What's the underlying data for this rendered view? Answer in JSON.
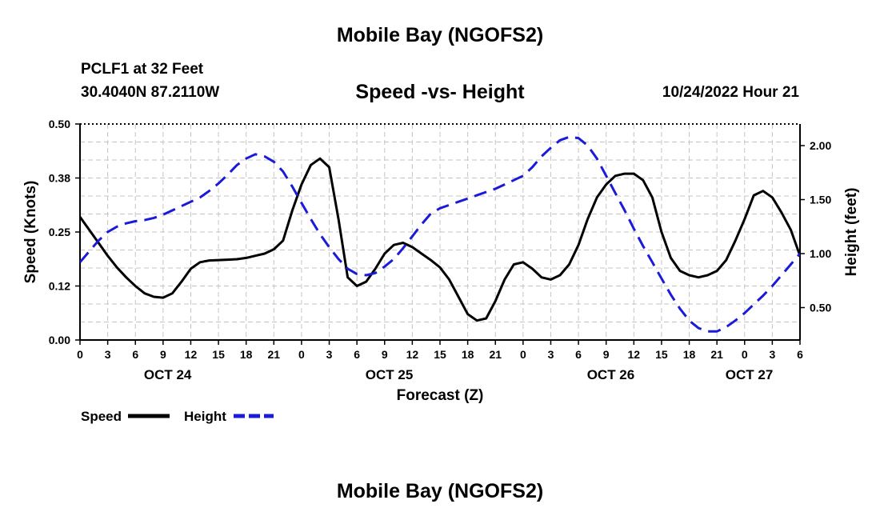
{
  "header": {
    "title": "Mobile Bay (NGOFS2)",
    "station": "PCLF1 at 32 Feet",
    "coords": "30.4040N  87.2110W",
    "timestamp": "10/24/2022 Hour 21"
  },
  "footer": {
    "title": "Mobile Bay (NGOFS2)"
  },
  "chart_data": {
    "type": "line",
    "title": "Speed -vs- Height",
    "xlabel": "Forecast (Z)",
    "ylabel": "Speed (Knots)",
    "y2label": "Height (feet)",
    "xlim": [
      0,
      78
    ],
    "ylim": [
      0,
      0.5
    ],
    "y2lim": [
      0.2,
      2.2
    ],
    "grid": true,
    "x_tick_values": [
      0,
      3,
      6,
      9,
      12,
      15,
      18,
      21,
      24,
      27,
      30,
      33,
      36,
      39,
      42,
      45,
      48,
      51,
      54,
      57,
      60,
      63,
      66,
      69,
      72,
      75,
      78
    ],
    "x_tick_labels": [
      "0",
      "3",
      "6",
      "9",
      "12",
      "15",
      "18",
      "21",
      "0",
      "3",
      "6",
      "9",
      "12",
      "15",
      "18",
      "21",
      "0",
      "3",
      "6",
      "9",
      "12",
      "15",
      "18",
      "21",
      "0",
      "3",
      "6"
    ],
    "y_tick_values": [
      0,
      0.125,
      0.25,
      0.375,
      0.5
    ],
    "y_tick_labels": [
      "0.00",
      "0.12",
      "0.25",
      "0.38",
      "0.50"
    ],
    "y2_tick_values": [
      0.5,
      1.0,
      1.5,
      2.0
    ],
    "y2_tick_labels": [
      "0.50",
      "1.00",
      "1.50",
      "2.00"
    ],
    "day_labels": [
      {
        "x": 9.5,
        "label": "OCT 24"
      },
      {
        "x": 33.5,
        "label": "OCT 25"
      },
      {
        "x": 57.5,
        "label": "OCT 26"
      },
      {
        "x": 72.5,
        "label": "OCT 27"
      }
    ],
    "legend": {
      "position": "bottom-left",
      "entries": [
        "Speed",
        "Height"
      ]
    },
    "series": [
      {
        "name": "Speed",
        "axis": "left",
        "color": "#000000",
        "dash": "solid",
        "points": [
          [
            0,
            0.285
          ],
          [
            1,
            0.255
          ],
          [
            2,
            0.225
          ],
          [
            3,
            0.195
          ],
          [
            4,
            0.168
          ],
          [
            5,
            0.145
          ],
          [
            6,
            0.125
          ],
          [
            7,
            0.108
          ],
          [
            8,
            0.1
          ],
          [
            9,
            0.098
          ],
          [
            10,
            0.108
          ],
          [
            11,
            0.135
          ],
          [
            12,
            0.165
          ],
          [
            13,
            0.18
          ],
          [
            14,
            0.184
          ],
          [
            15,
            0.185
          ],
          [
            16,
            0.186
          ],
          [
            17,
            0.187
          ],
          [
            18,
            0.19
          ],
          [
            19,
            0.195
          ],
          [
            20,
            0.2
          ],
          [
            21,
            0.21
          ],
          [
            22,
            0.23
          ],
          [
            23,
            0.3
          ],
          [
            24,
            0.36
          ],
          [
            25,
            0.405
          ],
          [
            26,
            0.42
          ],
          [
            27,
            0.4
          ],
          [
            28,
            0.28
          ],
          [
            29,
            0.145
          ],
          [
            30,
            0.125
          ],
          [
            31,
            0.135
          ],
          [
            32,
            0.165
          ],
          [
            33,
            0.2
          ],
          [
            34,
            0.22
          ],
          [
            35,
            0.225
          ],
          [
            36,
            0.215
          ],
          [
            37,
            0.2
          ],
          [
            38,
            0.185
          ],
          [
            39,
            0.168
          ],
          [
            40,
            0.14
          ],
          [
            41,
            0.1
          ],
          [
            42,
            0.06
          ],
          [
            43,
            0.045
          ],
          [
            44,
            0.05
          ],
          [
            45,
            0.09
          ],
          [
            46,
            0.14
          ],
          [
            47,
            0.175
          ],
          [
            48,
            0.18
          ],
          [
            49,
            0.165
          ],
          [
            50,
            0.145
          ],
          [
            51,
            0.14
          ],
          [
            52,
            0.15
          ],
          [
            53,
            0.175
          ],
          [
            54,
            0.22
          ],
          [
            55,
            0.28
          ],
          [
            56,
            0.33
          ],
          [
            57,
            0.36
          ],
          [
            58,
            0.38
          ],
          [
            59,
            0.385
          ],
          [
            60,
            0.385
          ],
          [
            61,
            0.37
          ],
          [
            62,
            0.33
          ],
          [
            63,
            0.25
          ],
          [
            64,
            0.19
          ],
          [
            65,
            0.16
          ],
          [
            66,
            0.15
          ],
          [
            67,
            0.145
          ],
          [
            68,
            0.15
          ],
          [
            69,
            0.16
          ],
          [
            70,
            0.185
          ],
          [
            71,
            0.23
          ],
          [
            72,
            0.28
          ],
          [
            73,
            0.335
          ],
          [
            74,
            0.345
          ],
          [
            75,
            0.33
          ],
          [
            76,
            0.295
          ],
          [
            77,
            0.255
          ],
          [
            78,
            0.195
          ]
        ]
      },
      {
        "name": "Height",
        "axis": "right",
        "color": "#1a1ad9",
        "dash": "dashed",
        "points": [
          [
            0,
            0.92
          ],
          [
            1,
            1.02
          ],
          [
            2,
            1.12
          ],
          [
            3,
            1.2
          ],
          [
            4,
            1.25
          ],
          [
            5,
            1.28
          ],
          [
            6,
            1.3
          ],
          [
            7,
            1.31
          ],
          [
            8,
            1.33
          ],
          [
            9,
            1.36
          ],
          [
            10,
            1.4
          ],
          [
            11,
            1.44
          ],
          [
            12,
            1.48
          ],
          [
            13,
            1.52
          ],
          [
            14,
            1.58
          ],
          [
            15,
            1.65
          ],
          [
            16,
            1.73
          ],
          [
            17,
            1.82
          ],
          [
            18,
            1.88
          ],
          [
            19,
            1.92
          ],
          [
            20,
            1.9
          ],
          [
            21,
            1.85
          ],
          [
            22,
            1.76
          ],
          [
            23,
            1.62
          ],
          [
            24,
            1.47
          ],
          [
            25,
            1.32
          ],
          [
            26,
            1.18
          ],
          [
            27,
            1.06
          ],
          [
            28,
            0.95
          ],
          [
            29,
            0.86
          ],
          [
            30,
            0.81
          ],
          [
            31,
            0.8
          ],
          [
            32,
            0.82
          ],
          [
            33,
            0.88
          ],
          [
            34,
            0.95
          ],
          [
            35,
            1.05
          ],
          [
            36,
            1.16
          ],
          [
            37,
            1.27
          ],
          [
            38,
            1.37
          ],
          [
            39,
            1.42
          ],
          [
            40,
            1.45
          ],
          [
            41,
            1.48
          ],
          [
            42,
            1.51
          ],
          [
            43,
            1.54
          ],
          [
            44,
            1.57
          ],
          [
            45,
            1.6
          ],
          [
            46,
            1.64
          ],
          [
            47,
            1.68
          ],
          [
            48,
            1.72
          ],
          [
            49,
            1.8
          ],
          [
            50,
            1.9
          ],
          [
            51,
            1.98
          ],
          [
            52,
            2.05
          ],
          [
            53,
            2.08
          ],
          [
            54,
            2.07
          ],
          [
            55,
            2.0
          ],
          [
            56,
            1.88
          ],
          [
            57,
            1.72
          ],
          [
            58,
            1.56
          ],
          [
            59,
            1.4
          ],
          [
            60,
            1.23
          ],
          [
            61,
            1.07
          ],
          [
            62,
            0.92
          ],
          [
            63,
            0.77
          ],
          [
            64,
            0.62
          ],
          [
            65,
            0.49
          ],
          [
            66,
            0.38
          ],
          [
            67,
            0.31
          ],
          [
            68,
            0.28
          ],
          [
            69,
            0.28
          ],
          [
            70,
            0.32
          ],
          [
            71,
            0.38
          ],
          [
            72,
            0.45
          ],
          [
            73,
            0.53
          ],
          [
            74,
            0.61
          ],
          [
            75,
            0.7
          ],
          [
            76,
            0.8
          ],
          [
            77,
            0.9
          ],
          [
            78,
            1.0
          ]
        ]
      }
    ]
  }
}
